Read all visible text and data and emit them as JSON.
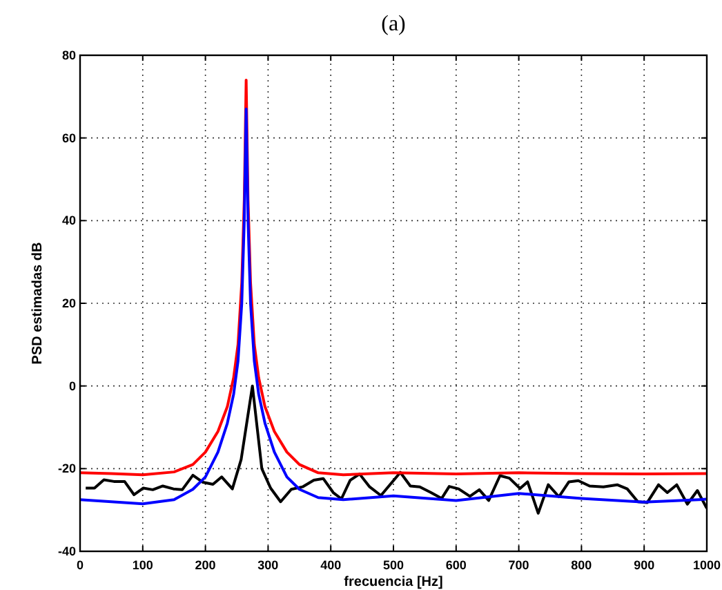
{
  "chart_data": {
    "type": "line",
    "title": "(a)",
    "xlabel": "frecuencia [Hz]",
    "ylabel": "PSD estimadas dB",
    "xlim": [
      0,
      1000
    ],
    "ylim": [
      -40,
      80
    ],
    "xticks": [
      0,
      100,
      200,
      300,
      400,
      500,
      600,
      700,
      800,
      900,
      1000
    ],
    "yticks": [
      -40,
      -20,
      0,
      20,
      40,
      60,
      80
    ],
    "grid": true,
    "line_style": "solid",
    "marker": "none",
    "series": [
      {
        "color": "#000000",
        "x": [
          9,
          23,
          38,
          54,
          71,
          86,
          101,
          116,
          132,
          149,
          163,
          180,
          196,
          212,
          226,
          243,
          257,
          275,
          290,
          304,
          320,
          337,
          355,
          373,
          388,
          404,
          417,
          431,
          446,
          462,
          480,
          511,
          527,
          542,
          560,
          577,
          589,
          604,
          622,
          637,
          652,
          670,
          685,
          702,
          714,
          731,
          747,
          764,
          780,
          795,
          813,
          835,
          857,
          873,
          890,
          905,
          923,
          937,
          952,
          969,
          985,
          1000
        ],
        "values": [
          -24.7,
          -24.7,
          -22.7,
          -23.1,
          -23.1,
          -26.3,
          -24.7,
          -25.1,
          -24.2,
          -24.9,
          -25.1,
          -21.6,
          -23.3,
          -23.8,
          -22,
          -24.9,
          -17.8,
          0,
          -20,
          -24.7,
          -28,
          -25,
          -24.4,
          -22.8,
          -22.4,
          -25.8,
          -27.3,
          -22.8,
          -21.3,
          -24.4,
          -26.5,
          -20.9,
          -24.2,
          -24.4,
          -25.8,
          -27.2,
          -24.3,
          -24.9,
          -26.7,
          -25.1,
          -27.7,
          -21.7,
          -22.3,
          -24.8,
          -23.2,
          -30.8,
          -23.9,
          -26.8,
          -23.2,
          -22.9,
          -24.2,
          -24.4,
          -23.9,
          -24.9,
          -28,
          -28.2,
          -23.9,
          -25.8,
          -23.9,
          -28.6,
          -25.3,
          -29.6
        ]
      },
      {
        "color": "#ff0000",
        "x": [
          0,
          50,
          100,
          150,
          180,
          200,
          220,
          235,
          245,
          252,
          258,
          262,
          265,
          268,
          272,
          278,
          285,
          295,
          310,
          330,
          350,
          380,
          420,
          500,
          600,
          700,
          800,
          900,
          1000
        ],
        "values": [
          -21,
          -21.2,
          -21.5,
          -20.8,
          -19,
          -16,
          -11,
          -5,
          2,
          10,
          25,
          45,
          74,
          45,
          25,
          10,
          2,
          -5,
          -11,
          -16,
          -19,
          -21,
          -21.5,
          -21,
          -21.3,
          -21,
          -21.2,
          -21.3,
          -21.2
        ]
      },
      {
        "color": "#0000ff",
        "x": [
          0,
          100,
          150,
          180,
          200,
          220,
          235,
          245,
          252,
          258,
          262,
          265,
          268,
          272,
          278,
          285,
          295,
          310,
          330,
          350,
          380,
          420,
          500,
          600,
          700,
          800,
          900,
          1000
        ],
        "values": [
          -27.5,
          -28.5,
          -27.5,
          -25,
          -22,
          -16,
          -9,
          -2,
          6,
          20,
          40,
          67,
          40,
          20,
          6,
          -2,
          -9,
          -16,
          -22,
          -25,
          -27,
          -27.5,
          -26.6,
          -27.7,
          -26,
          -27.2,
          -28.1,
          -27.4
        ]
      }
    ]
  }
}
